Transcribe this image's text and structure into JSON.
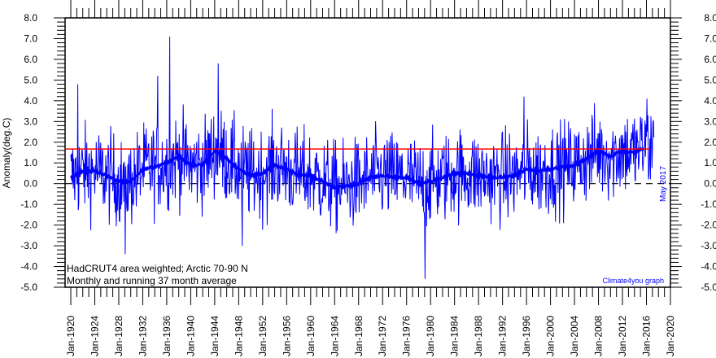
{
  "chart_data": {
    "type": "line",
    "title_lines": [
      "HadCRUT4 area weighted; Arctic 70-90 N",
      "Monthly and running 37 month average"
    ],
    "ylabel": "Anomaly(deg.C)",
    "xlabel": "",
    "ylim": [
      -5.0,
      8.0
    ],
    "xlim": [
      1920,
      2020
    ],
    "y_ticks": [
      "8.0",
      "7.0",
      "6.0",
      "5.0",
      "4.0",
      "3.0",
      "2.0",
      "1.0",
      "0.0",
      "-1.0",
      "-2.0",
      "-3.0",
      "-4.0",
      "-5.0"
    ],
    "x_ticks": [
      "Jan-1920",
      "Jan-1924",
      "Jan-1928",
      "Jan-1932",
      "Jan-1936",
      "Jan-1940",
      "Jan-1944",
      "Jan-1948",
      "Jan-1952",
      "Jan-1956",
      "Jan-1960",
      "Jan-1964",
      "Jan-1968",
      "Jan-1972",
      "Jan-1976",
      "Jan-1980",
      "Jan-1984",
      "Jan-1988",
      "Jan-1992",
      "Jan-1996",
      "Jan-2000",
      "Jan-2004",
      "Jan-2008",
      "Jan-2012",
      "Jan-2016",
      "Jan-2020"
    ],
    "last_month_label": "May 2017",
    "credit": "Climate4you graph",
    "reference_line": {
      "value": 1.67,
      "from": 1920,
      "to": 2016.5,
      "color": "#ff0000"
    },
    "zero_line": {
      "value": 0.0,
      "style": "dashed",
      "color": "#000000"
    },
    "series": [
      {
        "name": "running 37 month average",
        "color": "#0000ff",
        "x": [
          1920,
          1922,
          1924,
          1926,
          1928,
          1930,
          1932,
          1934,
          1936,
          1938,
          1940,
          1942,
          1944,
          1946,
          1948,
          1950,
          1952,
          1954,
          1956,
          1958,
          1960,
          1962,
          1964,
          1966,
          1968,
          1970,
          1972,
          1974,
          1976,
          1978,
          1980,
          1982,
          1984,
          1986,
          1988,
          1990,
          1992,
          1994,
          1996,
          1998,
          2000,
          2002,
          2004,
          2006,
          2008,
          2010,
          2012,
          2014,
          2015.5
        ],
        "values": [
          0.3,
          0.6,
          0.6,
          0.4,
          0.1,
          0.1,
          0.7,
          0.8,
          1.0,
          1.3,
          0.9,
          0.9,
          1.6,
          1.2,
          0.7,
          0.4,
          0.5,
          0.9,
          0.7,
          0.4,
          0.4,
          0.1,
          -0.2,
          -0.1,
          0.0,
          0.3,
          0.4,
          0.3,
          0.3,
          0.0,
          0.1,
          0.3,
          0.5,
          0.5,
          0.4,
          0.3,
          0.3,
          0.4,
          0.7,
          0.6,
          0.7,
          0.8,
          0.9,
          1.2,
          1.6,
          1.3,
          1.6,
          1.5,
          1.7
        ]
      },
      {
        "name": "monthly",
        "color": "#0000ff",
        "start": 1920,
        "end": 2017.33,
        "noise_sd": 1.1,
        "notable_points": [
          [
            1936.5,
            7.1
          ],
          [
            1944.6,
            5.8
          ],
          [
            1929.1,
            -3.4
          ],
          [
            1979.1,
            -4.6
          ],
          [
            1948.6,
            -3.0
          ],
          [
            1995.6,
            4.2
          ],
          [
            2016.1,
            4.1
          ],
          [
            1934.5,
            5.2
          ],
          [
            1921.2,
            4.8
          ],
          [
            2017.1,
            3.0
          ]
        ]
      }
    ]
  }
}
